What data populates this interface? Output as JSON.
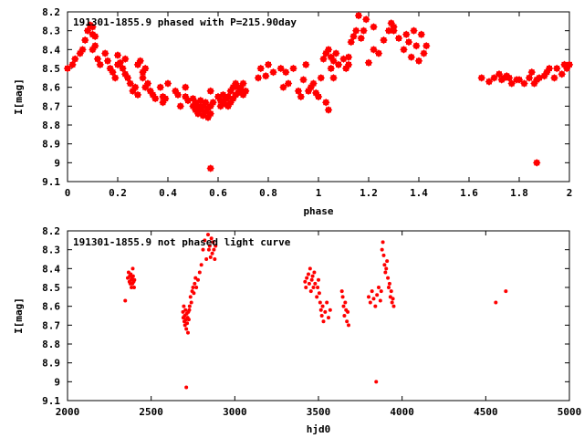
{
  "chart_data": [
    {
      "type": "scatter",
      "title": "191301-1855.9 phased with P=215.90day",
      "xlabel": "phase",
      "ylabel": "I[mag]",
      "xlim": [
        0,
        2
      ],
      "ylim": [
        9.1,
        8.2
      ],
      "y_inverted": true,
      "grid": false,
      "marker": "filled-star",
      "color": "#ff0000",
      "xticks": [
        "0",
        "0.2",
        "0.4",
        "0.6",
        "0.8",
        "1",
        "1.2",
        "1.4",
        "1.6",
        "1.8",
        "2"
      ],
      "yticks": [
        "8.2",
        "8.3",
        "8.4",
        "8.5",
        "8.6",
        "8.7",
        "8.8",
        "8.9",
        "9",
        "9.1"
      ],
      "x": [
        0.0,
        0.02,
        0.03,
        0.05,
        0.06,
        0.07,
        0.08,
        0.09,
        0.1,
        0.1,
        0.11,
        0.11,
        0.1,
        0.12,
        0.13,
        0.15,
        0.16,
        0.17,
        0.18,
        0.19,
        0.2,
        0.2,
        0.21,
        0.22,
        0.23,
        0.23,
        0.24,
        0.25,
        0.26,
        0.27,
        0.28,
        0.28,
        0.29,
        0.3,
        0.3,
        0.31,
        0.31,
        0.32,
        0.33,
        0.34,
        0.35,
        0.37,
        0.38,
        0.38,
        0.39,
        0.4,
        0.43,
        0.44,
        0.45,
        0.47,
        0.47,
        0.48,
        0.5,
        0.5,
        0.51,
        0.51,
        0.52,
        0.52,
        0.53,
        0.53,
        0.54,
        0.54,
        0.55,
        0.55,
        0.56,
        0.56,
        0.57,
        0.57,
        0.57,
        0.58,
        0.6,
        0.61,
        0.61,
        0.62,
        0.62,
        0.63,
        0.63,
        0.64,
        0.64,
        0.65,
        0.65,
        0.66,
        0.66,
        0.67,
        0.67,
        0.68,
        0.68,
        0.69,
        0.69,
        0.7,
        0.7,
        0.71,
        0.76,
        0.77,
        0.79,
        0.8,
        0.82,
        0.85,
        0.86,
        0.87,
        0.88,
        0.9,
        0.92,
        0.93,
        0.94,
        0.95,
        0.96,
        0.97,
        0.98,
        0.99,
        1.0,
        1.01,
        1.02,
        1.03,
        1.03,
        1.04,
        1.04,
        1.05,
        1.05,
        1.06,
        1.06,
        1.07,
        1.08,
        1.1,
        1.11,
        1.12,
        1.12,
        1.13,
        1.14,
        1.15,
        1.16,
        1.17,
        1.18,
        1.19,
        1.2,
        1.22,
        1.22,
        1.24,
        1.26,
        1.28,
        1.29,
        1.3,
        1.3,
        1.32,
        1.34,
        1.35,
        1.36,
        1.37,
        1.38,
        1.39,
        1.4,
        1.41,
        1.42,
        1.43,
        1.65,
        1.68,
        1.7,
        1.72,
        1.73,
        1.74,
        1.75,
        1.76,
        1.77,
        1.79,
        1.8,
        1.82,
        1.84,
        1.85,
        1.86,
        1.87,
        1.88,
        1.9,
        1.91,
        1.92,
        1.94,
        1.95,
        1.97,
        1.98,
        1.99,
        2.0,
        0.57,
        1.87
      ],
      "y": [
        8.5,
        8.48,
        8.45,
        8.42,
        8.4,
        8.35,
        8.3,
        8.27,
        8.28,
        8.32,
        8.33,
        8.38,
        8.4,
        8.45,
        8.48,
        8.42,
        8.46,
        8.5,
        8.52,
        8.55,
        8.43,
        8.48,
        8.47,
        8.5,
        8.45,
        8.53,
        8.55,
        8.58,
        8.62,
        8.6,
        8.64,
        8.48,
        8.46,
        8.52,
        8.55,
        8.5,
        8.6,
        8.58,
        8.62,
        8.64,
        8.66,
        8.6,
        8.65,
        8.68,
        8.66,
        8.58,
        8.62,
        8.64,
        8.7,
        8.6,
        8.65,
        8.67,
        8.66,
        8.7,
        8.68,
        8.72,
        8.7,
        8.74,
        8.67,
        8.72,
        8.7,
        8.75,
        8.68,
        8.73,
        8.71,
        8.76,
        8.7,
        8.74,
        8.62,
        8.68,
        8.65,
        8.67,
        8.7,
        8.64,
        8.68,
        8.66,
        8.69,
        8.65,
        8.7,
        8.62,
        8.68,
        8.6,
        8.66,
        8.58,
        8.64,
        8.6,
        8.63,
        8.62,
        8.6,
        8.58,
        8.64,
        8.62,
        8.55,
        8.5,
        8.54,
        8.48,
        8.52,
        8.5,
        8.6,
        8.52,
        8.58,
        8.5,
        8.62,
        8.65,
        8.56,
        8.48,
        8.62,
        8.6,
        8.58,
        8.63,
        8.65,
        8.55,
        8.45,
        8.42,
        8.68,
        8.4,
        8.72,
        8.44,
        8.5,
        8.46,
        8.55,
        8.42,
        8.48,
        8.45,
        8.5,
        8.44,
        8.48,
        8.36,
        8.33,
        8.3,
        8.22,
        8.34,
        8.3,
        8.24,
        8.47,
        8.4,
        8.28,
        8.42,
        8.35,
        8.3,
        8.26,
        8.28,
        8.3,
        8.34,
        8.4,
        8.32,
        8.36,
        8.44,
        8.3,
        8.38,
        8.46,
        8.32,
        8.42,
        8.38,
        8.55,
        8.57,
        8.55,
        8.53,
        8.56,
        8.55,
        8.54,
        8.55,
        8.58,
        8.56,
        8.56,
        8.58,
        8.55,
        8.52,
        8.58,
        8.56,
        8.55,
        8.54,
        8.52,
        8.5,
        8.55,
        8.5,
        8.53,
        8.48,
        8.5,
        8.48,
        9.03,
        9.0
      ]
    },
    {
      "type": "scatter",
      "title": "191301-1855.9 not phased light curve",
      "xlabel": "hjd0",
      "ylabel": "I[mag]",
      "xlim": [
        2000,
        5000
      ],
      "ylim": [
        9.1,
        8.2
      ],
      "y_inverted": true,
      "grid": false,
      "marker": "filled-dot",
      "color": "#ff0000",
      "xticks": [
        "2000",
        "2500",
        "3000",
        "3500",
        "4000",
        "4500",
        "5000"
      ],
      "yticks": [
        "8.2",
        "8.3",
        "8.4",
        "8.5",
        "8.6",
        "8.7",
        "8.8",
        "8.9",
        "9",
        "9.1"
      ],
      "x": [
        2345,
        2360,
        2365,
        2370,
        2372,
        2375,
        2378,
        2380,
        2382,
        2385,
        2388,
        2390,
        2392,
        2395,
        2398,
        2400,
        2690,
        2692,
        2695,
        2698,
        2700,
        2702,
        2705,
        2708,
        2710,
        2712,
        2715,
        2718,
        2720,
        2722,
        2725,
        2728,
        2730,
        2735,
        2740,
        2745,
        2750,
        2755,
        2760,
        2765,
        2770,
        2780,
        2790,
        2800,
        2810,
        2820,
        2830,
        2840,
        2845,
        2850,
        2855,
        2860,
        2865,
        2870,
        2875,
        2880,
        2885,
        3420,
        3425,
        3430,
        3440,
        3445,
        3450,
        3455,
        3460,
        3465,
        3470,
        3475,
        3480,
        3490,
        3495,
        3500,
        3505,
        3510,
        3515,
        3520,
        3525,
        3530,
        3540,
        3550,
        3560,
        3570,
        3640,
        3645,
        3650,
        3655,
        3660,
        3665,
        3670,
        3675,
        3680,
        3800,
        3810,
        3820,
        3830,
        3840,
        3850,
        3860,
        3870,
        3875,
        3880,
        3885,
        3890,
        3895,
        3900,
        3905,
        3910,
        3915,
        3920,
        3925,
        3930,
        3935,
        3940,
        3945,
        3950,
        4560,
        4620,
        2710,
        3845
      ],
      "y": [
        8.57,
        8.45,
        8.42,
        8.47,
        8.44,
        8.48,
        8.43,
        8.46,
        8.5,
        8.45,
        8.48,
        8.4,
        8.44,
        8.47,
        8.5,
        8.46,
        8.63,
        8.66,
        8.6,
        8.68,
        8.65,
        8.7,
        8.62,
        8.67,
        8.72,
        8.64,
        8.69,
        8.66,
        8.74,
        8.63,
        8.67,
        8.62,
        8.6,
        8.55,
        8.58,
        8.52,
        8.5,
        8.53,
        8.48,
        8.45,
        8.5,
        8.46,
        8.42,
        8.38,
        8.3,
        8.25,
        8.35,
        8.22,
        8.3,
        8.28,
        8.34,
        8.24,
        8.32,
        8.26,
        8.3,
        8.35,
        8.28,
        8.47,
        8.5,
        8.45,
        8.43,
        8.48,
        8.4,
        8.52,
        8.46,
        8.44,
        8.5,
        8.42,
        8.48,
        8.55,
        8.5,
        8.46,
        8.53,
        8.58,
        8.62,
        8.65,
        8.6,
        8.68,
        8.63,
        8.58,
        8.66,
        8.62,
        8.52,
        8.55,
        8.6,
        8.65,
        8.58,
        8.62,
        8.68,
        8.63,
        8.7,
        8.55,
        8.58,
        8.52,
        8.56,
        8.6,
        8.54,
        8.5,
        8.57,
        8.52,
        8.3,
        8.26,
        8.33,
        8.38,
        8.42,
        8.4,
        8.36,
        8.45,
        8.5,
        8.48,
        8.55,
        8.52,
        8.58,
        8.56,
        8.6,
        8.58,
        8.52,
        9.03,
        9.0
      ]
    }
  ]
}
